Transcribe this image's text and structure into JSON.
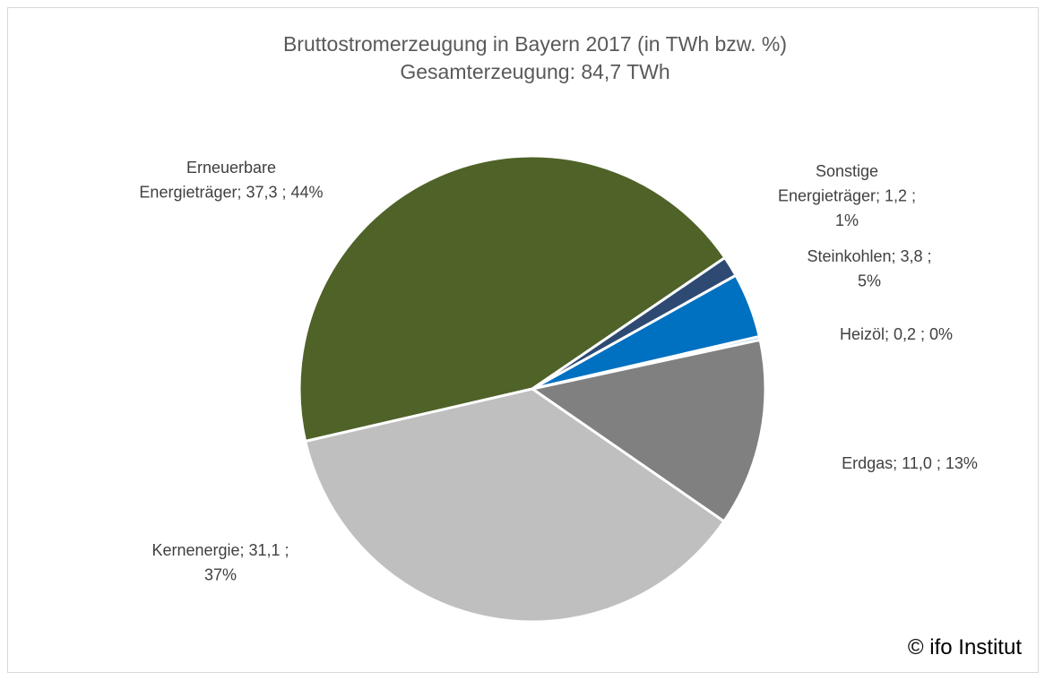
{
  "chart_data": {
    "type": "pie",
    "title": [
      "Bruttostromerzeugung in Bayern 2017 (in TWh bzw. %)",
      "Gesamterzeugung: 84,7 TWh"
    ],
    "values": [
      37.3,
      1.2,
      3.8,
      0.2,
      11.0,
      31.1
    ],
    "value_labels": [
      [
        "Erneuerbare",
        "Energieträger; 37,3 ; 44%"
      ],
      [
        "Sonstige",
        "Energieträger; 1,2 ;",
        "1%"
      ],
      [
        "Steinkohlen; 3,8 ;",
        "5%"
      ],
      [
        "Heizöl; 0,2 ; 0%"
      ],
      [
        "Erdgas; 11,0 ; 13%"
      ],
      [
        "Kernenergie; 31,1 ;",
        "37%"
      ]
    ],
    "colors": [
      "#4f6228",
      "#2e4a72",
      "#0070c0",
      "#9dc3e6",
      "#808080",
      "#bfbfbf"
    ],
    "start_angle": 257,
    "source": "© ifo Institut"
  }
}
